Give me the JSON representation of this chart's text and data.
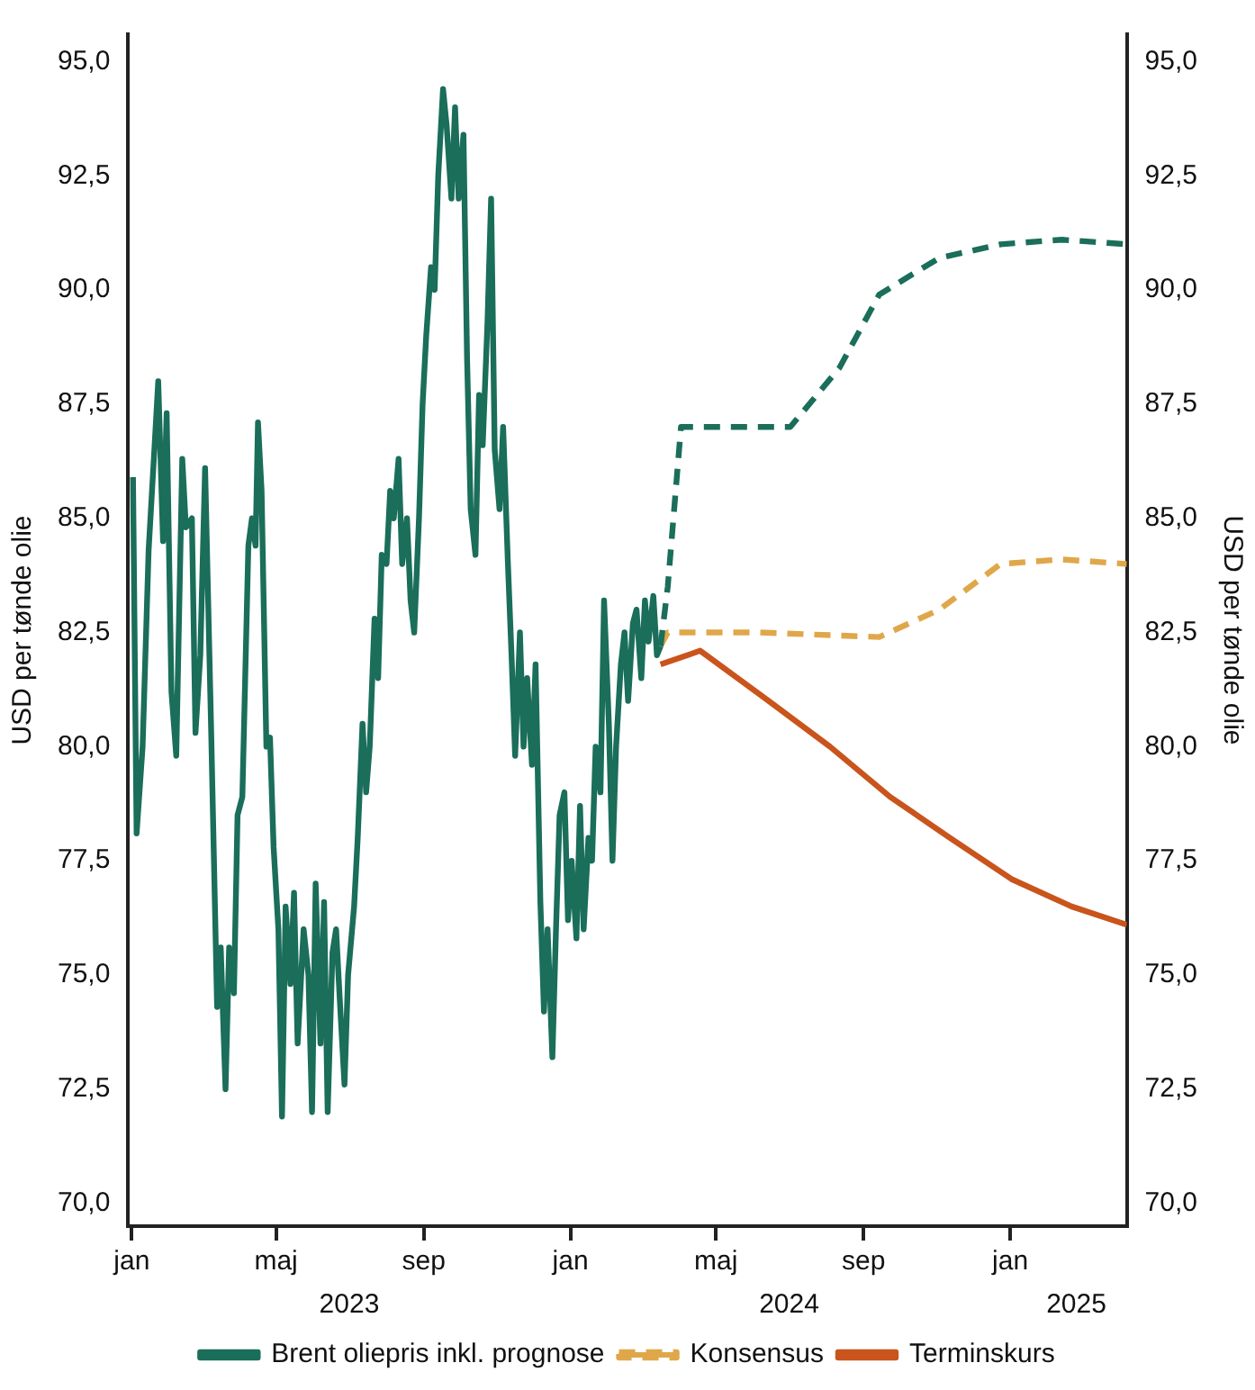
{
  "chart_data": {
    "type": "line",
    "ylabel": "USD per tønde olie",
    "y2label": "USD per tønde olie",
    "xlim": [
      "2022-12-29",
      "2025-04-08"
    ],
    "xticks": [
      {
        "value": "2023-01-01",
        "label": "jan"
      },
      {
        "value": "2023-05-01",
        "label": "maj"
      },
      {
        "value": "2023-09-01",
        "label": "sep"
      },
      {
        "value": "2024-01-01",
        "label": "jan"
      },
      {
        "value": "2024-05-01",
        "label": "maj"
      },
      {
        "value": "2024-09-01",
        "label": "sep"
      },
      {
        "value": "2025-01-01",
        "label": "jan"
      }
    ],
    "x2lim": [
      "2022-12-29",
      "2025-04-08"
    ],
    "x2ticks": [
      {
        "value": "2023-07-01",
        "label": "2023"
      },
      {
        "value": "2024-07-01",
        "label": "2024"
      },
      {
        "value": "2025-02-25",
        "label": "2025"
      }
    ],
    "ylim": [
      69.5,
      95.6
    ],
    "yticks": [
      {
        "value": 70,
        "label": "70,0"
      },
      {
        "value": 72.5,
        "label": "72,5"
      },
      {
        "value": 75,
        "label": "75,0"
      },
      {
        "value": 77.5,
        "label": "77,5"
      },
      {
        "value": 80,
        "label": "80,0"
      },
      {
        "value": 82.5,
        "label": "82,5"
      },
      {
        "value": 85,
        "label": "85,0"
      },
      {
        "value": 87.5,
        "label": "87,5"
      },
      {
        "value": 90,
        "label": "90,0"
      },
      {
        "value": 92.5,
        "label": "92,5"
      },
      {
        "value": 95,
        "label": "95,0"
      }
    ],
    "y2lim": [
      69.5,
      95.6
    ],
    "y2ticks": [
      {
        "value": 70,
        "label": "70,0"
      },
      {
        "value": 72.5,
        "label": "72,5"
      },
      {
        "value": 75,
        "label": "75,0"
      },
      {
        "value": 77.5,
        "label": "77,5"
      },
      {
        "value": 80,
        "label": "80,0"
      },
      {
        "value": 82.5,
        "label": "82,5"
      },
      {
        "value": 85,
        "label": "85,0"
      },
      {
        "value": 87.5,
        "label": "87,5"
      },
      {
        "value": 90,
        "label": "90,0"
      },
      {
        "value": 92.5,
        "label": "92,5"
      },
      {
        "value": 95,
        "label": "95,0"
      }
    ],
    "grid": false,
    "legend": "bottom",
    "marker": "none",
    "series": [
      {
        "name": "Brent oliepris inkl. prognose",
        "color": "#1a6e5a",
        "line_style": "solid",
        "x": [
          "2023-01-02",
          "2023-01-05",
          "2023-01-10",
          "2023-01-15",
          "2023-01-20",
          "2023-01-23",
          "2023-01-27",
          "2023-01-30",
          "2023-02-03",
          "2023-02-07",
          "2023-02-12",
          "2023-02-15",
          "2023-02-20",
          "2023-02-23",
          "2023-02-27",
          "2023-03-03",
          "2023-03-08",
          "2023-03-13",
          "2023-03-16",
          "2023-03-20",
          "2023-03-23",
          "2023-03-27",
          "2023-03-30",
          "2023-04-03",
          "2023-04-08",
          "2023-04-11",
          "2023-04-14",
          "2023-04-16",
          "2023-04-19",
          "2023-04-23",
          "2023-04-26",
          "2023-04-29",
          "2023-05-03",
          "2023-05-06",
          "2023-05-09",
          "2023-05-13",
          "2023-05-16",
          "2023-05-19",
          "2023-05-24",
          "2023-05-28",
          "2023-05-31",
          "2023-06-03",
          "2023-06-07",
          "2023-06-10",
          "2023-06-13",
          "2023-06-17",
          "2023-06-20",
          "2023-06-23",
          "2023-06-27",
          "2023-06-30",
          "2023-07-05",
          "2023-07-08",
          "2023-07-12",
          "2023-07-15",
          "2023-07-18",
          "2023-07-22",
          "2023-07-25",
          "2023-07-28",
          "2023-08-01",
          "2023-08-04",
          "2023-08-07",
          "2023-08-11",
          "2023-08-14",
          "2023-08-18",
          "2023-08-21",
          "2023-08-24",
          "2023-08-28",
          "2023-08-31",
          "2023-09-03",
          "2023-09-07",
          "2023-09-10",
          "2023-09-13",
          "2023-09-17",
          "2023-09-20",
          "2023-09-24",
          "2023-09-27",
          "2023-09-30",
          "2023-10-04",
          "2023-10-07",
          "2023-10-10",
          "2023-10-14",
          "2023-10-17",
          "2023-10-20",
          "2023-10-24",
          "2023-10-27",
          "2023-10-30",
          "2023-11-03",
          "2023-11-06",
          "2023-11-10",
          "2023-11-13",
          "2023-11-16",
          "2023-11-20",
          "2023-11-23",
          "2023-11-26",
          "2023-11-30",
          "2023-12-03",
          "2023-12-07",
          "2023-12-10",
          "2023-12-13",
          "2023-12-17",
          "2023-12-20",
          "2023-12-23",
          "2023-12-27",
          "2023-12-30",
          "2024-01-02",
          "2024-01-06",
          "2024-01-09",
          "2024-01-12",
          "2024-01-16",
          "2024-01-19",
          "2024-01-22",
          "2024-01-26",
          "2024-01-29",
          "2024-02-02",
          "2024-02-05",
          "2024-02-08",
          "2024-02-12",
          "2024-02-15",
          "2024-02-18",
          "2024-02-22",
          "2024-02-25",
          "2024-02-29",
          "2024-03-03",
          "2024-03-06",
          "2024-03-10",
          "2024-03-13",
          "2024-03-16"
        ],
        "values": [
          85.9,
          78.1,
          80.0,
          84.3,
          86.6,
          88.0,
          84.5,
          87.3,
          81.2,
          79.8,
          86.3,
          84.8,
          85.0,
          80.3,
          82.0,
          86.1,
          80.4,
          74.3,
          75.6,
          72.5,
          75.6,
          74.6,
          78.5,
          78.9,
          84.4,
          85.0,
          84.4,
          87.1,
          85.6,
          80.0,
          80.2,
          77.8,
          76.0,
          71.9,
          76.5,
          74.8,
          76.8,
          73.5,
          76.0,
          75.0,
          72.0,
          77.0,
          73.5,
          76.6,
          72.0,
          75.5,
          76.0,
          74.5,
          72.6,
          75.0,
          76.5,
          78.0,
          80.5,
          79.0,
          80.0,
          82.8,
          81.5,
          84.2,
          84.0,
          85.6,
          85.0,
          86.3,
          84.0,
          85.0,
          83.2,
          82.5,
          85.0,
          87.5,
          89.0,
          90.5,
          90.0,
          92.5,
          94.4,
          93.6,
          92.0,
          94.0,
          92.0,
          93.4,
          88.5,
          85.2,
          84.2,
          87.7,
          86.6,
          89.3,
          92.0,
          86.5,
          85.2,
          87.0,
          84.0,
          82.0,
          79.8,
          82.5,
          80.0,
          81.5,
          79.6,
          81.8,
          76.6,
          74.2,
          76.0,
          73.2,
          76.0,
          78.5,
          79.0,
          76.2,
          77.5,
          75.8,
          78.7,
          76.0,
          78.0,
          77.5,
          80.0,
          79.0,
          83.2,
          80.5,
          77.5,
          80.0,
          81.8,
          82.5,
          81.0,
          82.7,
          83.0,
          81.5,
          83.2,
          82.3,
          83.3,
          82.0,
          82.2
        ]
      },
      {
        "color": "#1a6e5a",
        "line_style": "dashed",
        "x": [
          "2024-03-16",
          "2024-03-22",
          "2024-04-02",
          "2024-07-02",
          "2024-08-12",
          "2024-09-14",
          "2024-11-03",
          "2024-12-24",
          "2025-02-13",
          "2025-04-08"
        ],
        "values": [
          82.2,
          83.5,
          87.0,
          87.0,
          88.3,
          89.9,
          90.7,
          91.0,
          91.1,
          91.0
        ]
      },
      {
        "name": "Konsensus",
        "color": "#e0a74a",
        "line_style": "dashed",
        "x": [
          "2024-03-16",
          "2024-03-22",
          "2024-06-07",
          "2024-09-14",
          "2024-11-03",
          "2024-12-24",
          "2025-02-13",
          "2025-04-08"
        ],
        "values": [
          82.2,
          82.5,
          82.5,
          82.4,
          83.0,
          84.0,
          84.1,
          84.0
        ]
      },
      {
        "name": "Terminskurs",
        "color": "#c9541c",
        "line_style": "solid",
        "x": [
          "2024-03-16",
          "2024-04-18",
          "2024-06-14",
          "2024-08-04",
          "2024-09-23",
          "2024-11-12",
          "2025-01-02",
          "2025-02-21",
          "2025-04-08"
        ],
        "values": [
          81.8,
          82.1,
          81.0,
          80.0,
          78.9,
          78.0,
          77.1,
          76.5,
          76.1
        ]
      }
    ]
  }
}
